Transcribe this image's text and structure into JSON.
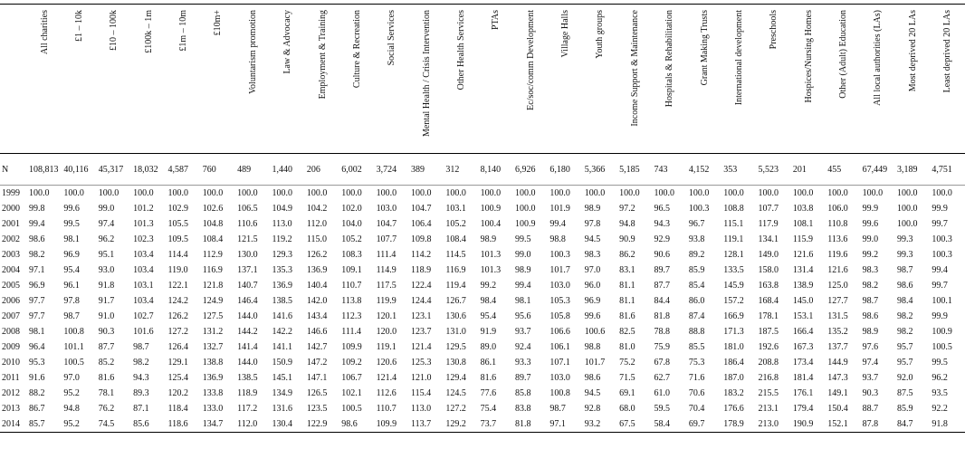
{
  "table": {
    "columns": [
      "All charities",
      "£1 – 10k",
      "£10 – 100k",
      "£100k – 1m",
      "£1m – 10m",
      "£10m+",
      "Voluntarism promotion",
      "Law & Advocacy",
      "Employment & Training",
      "Culture & Recreation",
      "Social Services",
      "Mental Health / Crisis Intervention",
      "Other Health Services",
      "PTAs",
      "Ec/soc/comm Development",
      "Village Halls",
      "Youth groups",
      "Income Support & Maintenance",
      "Hospitals & Rehabilitation",
      "Grant Making Trusts",
      "International development",
      "Preschools",
      "Hospices/Nursing Homes",
      "Other (Adult) Education",
      "All local authorities (LAs)",
      "Most deprived 20 LAs",
      "Least deprived 20 LAs"
    ],
    "rows": [
      {
        "label": "N",
        "values": [
          "108,813",
          "40,116",
          "45,317",
          "18,032",
          "4,587",
          "760",
          "489",
          "1,440",
          "206",
          "6,002",
          "3,724",
          "389",
          "312",
          "8,140",
          "6,926",
          "6,180",
          "5,366",
          "5,185",
          "743",
          "4,152",
          "353",
          "5,523",
          "201",
          "455",
          "67,449",
          "3,189",
          "4,751"
        ]
      },
      {
        "label": "1999",
        "values": [
          "100.0",
          "100.0",
          "100.0",
          "100.0",
          "100.0",
          "100.0",
          "100.0",
          "100.0",
          "100.0",
          "100.0",
          "100.0",
          "100.0",
          "100.0",
          "100.0",
          "100.0",
          "100.0",
          "100.0",
          "100.0",
          "100.0",
          "100.0",
          "100.0",
          "100.0",
          "100.0",
          "100.0",
          "100.0",
          "100.0",
          "100.0"
        ]
      },
      {
        "label": "2000",
        "values": [
          "99.8",
          "99.6",
          "99.0",
          "101.2",
          "102.9",
          "102.6",
          "106.5",
          "104.9",
          "104.2",
          "102.0",
          "103.0",
          "104.7",
          "103.1",
          "100.9",
          "100.0",
          "101.9",
          "98.9",
          "97.2",
          "96.5",
          "100.3",
          "108.8",
          "107.7",
          "103.8",
          "106.0",
          "99.9",
          "100.0",
          "99.9"
        ]
      },
      {
        "label": "2001",
        "values": [
          "99.4",
          "99.5",
          "97.4",
          "101.3",
          "105.5",
          "104.8",
          "110.6",
          "113.0",
          "112.0",
          "104.0",
          "104.7",
          "106.4",
          "105.2",
          "100.4",
          "100.9",
          "99.4",
          "97.8",
          "94.8",
          "94.3",
          "96.7",
          "115.1",
          "117.9",
          "108.1",
          "110.8",
          "99.6",
          "100.0",
          "99.7"
        ]
      },
      {
        "label": "2002",
        "values": [
          "98.6",
          "98.1",
          "96.2",
          "102.3",
          "109.5",
          "108.4",
          "121.5",
          "119.2",
          "115.0",
          "105.2",
          "107.7",
          "109.8",
          "108.4",
          "98.9",
          "99.5",
          "98.8",
          "94.5",
          "90.9",
          "92.9",
          "93.8",
          "119.1",
          "134.1",
          "115.9",
          "113.6",
          "99.0",
          "99.3",
          "100.3"
        ]
      },
      {
        "label": "2003",
        "values": [
          "98.2",
          "96.9",
          "95.1",
          "103.4",
          "114.4",
          "112.9",
          "130.0",
          "129.3",
          "126.2",
          "108.3",
          "111.4",
          "114.2",
          "114.5",
          "101.3",
          "99.0",
          "100.3",
          "98.3",
          "86.2",
          "90.6",
          "89.2",
          "128.1",
          "149.0",
          "121.6",
          "119.6",
          "99.2",
          "99.3",
          "100.3"
        ]
      },
      {
        "label": "2004",
        "values": [
          "97.1",
          "95.4",
          "93.0",
          "103.4",
          "119.0",
          "116.9",
          "137.1",
          "135.3",
          "136.9",
          "109.1",
          "114.9",
          "118.9",
          "116.9",
          "101.3",
          "98.9",
          "101.7",
          "97.0",
          "83.1",
          "89.7",
          "85.9",
          "133.5",
          "158.0",
          "131.4",
          "121.6",
          "98.3",
          "98.7",
          "99.4"
        ]
      },
      {
        "label": "2005",
        "values": [
          "96.9",
          "96.1",
          "91.8",
          "103.1",
          "122.1",
          "121.8",
          "140.7",
          "136.9",
          "140.4",
          "110.7",
          "117.5",
          "122.4",
          "119.4",
          "99.2",
          "99.4",
          "103.0",
          "96.0",
          "81.1",
          "87.7",
          "85.4",
          "145.9",
          "163.8",
          "138.9",
          "125.0",
          "98.2",
          "98.6",
          "99.7"
        ]
      },
      {
        "label": "2006",
        "values": [
          "97.7",
          "97.8",
          "91.7",
          "103.4",
          "124.2",
          "124.9",
          "146.4",
          "138.5",
          "142.0",
          "113.8",
          "119.9",
          "124.4",
          "126.7",
          "98.4",
          "98.1",
          "105.3",
          "96.9",
          "81.1",
          "84.4",
          "86.0",
          "157.2",
          "168.4",
          "145.0",
          "127.7",
          "98.7",
          "98.4",
          "100.1"
        ]
      },
      {
        "label": "2007",
        "values": [
          "97.7",
          "98.7",
          "91.0",
          "102.7",
          "126.2",
          "127.5",
          "144.0",
          "141.6",
          "143.4",
          "112.3",
          "120.1",
          "123.1",
          "130.6",
          "95.4",
          "95.6",
          "105.8",
          "99.6",
          "81.6",
          "81.8",
          "87.4",
          "166.9",
          "178.1",
          "153.1",
          "131.5",
          "98.6",
          "98.2",
          "99.9"
        ]
      },
      {
        "label": "2008",
        "values": [
          "98.1",
          "100.8",
          "90.3",
          "101.6",
          "127.2",
          "131.2",
          "144.2",
          "142.2",
          "146.6",
          "111.4",
          "120.0",
          "123.7",
          "131.0",
          "91.9",
          "93.7",
          "106.6",
          "100.6",
          "82.5",
          "78.8",
          "88.8",
          "171.3",
          "187.5",
          "166.4",
          "135.2",
          "98.9",
          "98.2",
          "100.9"
        ]
      },
      {
        "label": "2009",
        "values": [
          "96.4",
          "101.1",
          "87.7",
          "98.7",
          "126.4",
          "132.7",
          "141.4",
          "141.1",
          "142.7",
          "109.9",
          "119.1",
          "121.4",
          "129.5",
          "89.0",
          "92.4",
          "106.1",
          "98.8",
          "81.0",
          "75.9",
          "85.5",
          "181.0",
          "192.6",
          "167.3",
          "137.7",
          "97.6",
          "95.7",
          "100.5"
        ]
      },
      {
        "label": "2010",
        "values": [
          "95.3",
          "100.5",
          "85.2",
          "98.2",
          "129.1",
          "138.8",
          "144.0",
          "150.9",
          "147.2",
          "109.2",
          "120.6",
          "125.3",
          "130.8",
          "86.1",
          "93.3",
          "107.1",
          "101.7",
          "75.2",
          "67.8",
          "75.3",
          "186.4",
          "208.8",
          "173.4",
          "144.9",
          "97.4",
          "95.7",
          "99.5"
        ]
      },
      {
        "label": "2011",
        "values": [
          "91.6",
          "97.0",
          "81.6",
          "94.3",
          "125.4",
          "136.9",
          "138.5",
          "145.1",
          "147.1",
          "106.7",
          "121.4",
          "121.0",
          "129.4",
          "81.6",
          "89.7",
          "103.0",
          "98.6",
          "71.5",
          "62.7",
          "71.6",
          "187.0",
          "216.8",
          "181.4",
          "147.3",
          "93.7",
          "92.0",
          "96.2"
        ]
      },
      {
        "label": "2012",
        "values": [
          "88.2",
          "95.2",
          "78.1",
          "89.3",
          "120.2",
          "133.8",
          "118.9",
          "134.9",
          "126.5",
          "102.1",
          "112.6",
          "115.4",
          "124.5",
          "77.6",
          "85.8",
          "100.8",
          "94.5",
          "69.1",
          "61.0",
          "70.6",
          "183.2",
          "215.5",
          "176.1",
          "149.1",
          "90.3",
          "87.5",
          "93.5"
        ]
      },
      {
        "label": "2013",
        "values": [
          "86.7",
          "94.8",
          "76.2",
          "87.1",
          "118.4",
          "133.0",
          "117.2",
          "131.6",
          "123.5",
          "100.5",
          "110.7",
          "113.0",
          "127.2",
          "75.4",
          "83.8",
          "98.7",
          "92.8",
          "68.0",
          "59.5",
          "70.4",
          "176.6",
          "213.1",
          "179.4",
          "150.4",
          "88.7",
          "85.9",
          "92.2"
        ]
      },
      {
        "label": "2014",
        "values": [
          "85.7",
          "95.2",
          "74.5",
          "85.6",
          "118.6",
          "134.7",
          "112.0",
          "130.4",
          "122.9",
          "98.6",
          "109.9",
          "113.7",
          "129.2",
          "73.7",
          "81.8",
          "97.1",
          "93.2",
          "67.5",
          "58.4",
          "69.7",
          "178.9",
          "213.0",
          "190.9",
          "152.1",
          "87.8",
          "84.7",
          "91.8"
        ]
      }
    ]
  }
}
